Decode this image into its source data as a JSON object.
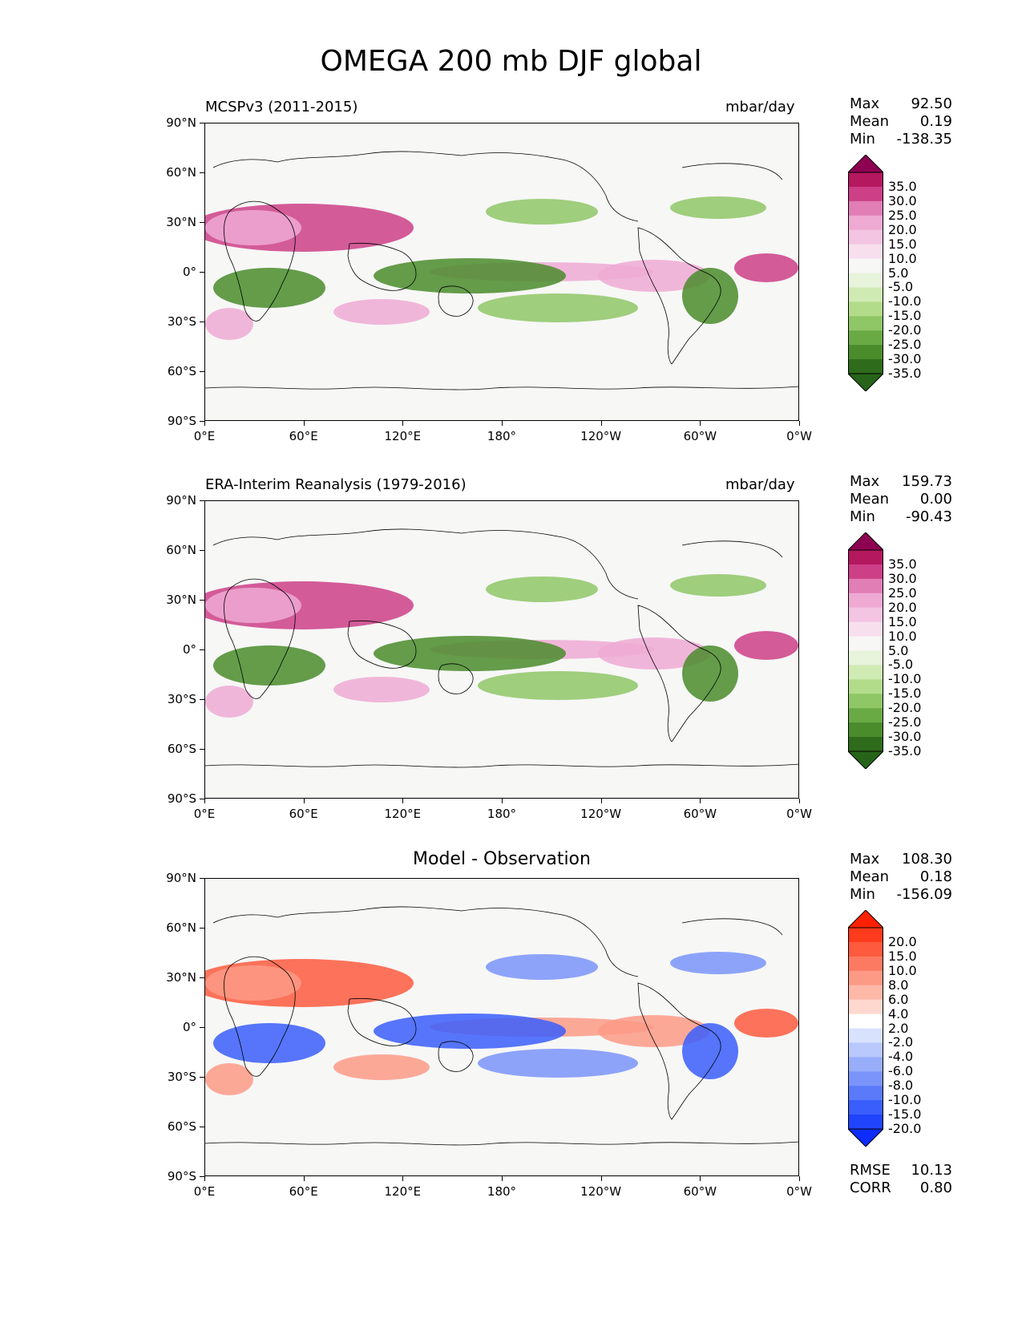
{
  "title": "OMEGA 200 mb DJF global",
  "x_ticks": [
    "0°E",
    "60°E",
    "120°E",
    "180°",
    "120°W",
    "60°W",
    "0°W"
  ],
  "y_ticks": [
    "90°N",
    "60°N",
    "30°N",
    "0°",
    "30°S",
    "60°S",
    "90°S"
  ],
  "panels": [
    {
      "left_title": "MCSPv3 (2011-2015)",
      "right_title": "mbar/day",
      "center_title": "",
      "stats": [
        {
          "k": "Max",
          "v": "92.50"
        },
        {
          "k": "Mean",
          "v": "0.19"
        },
        {
          "k": "Min",
          "v": "-138.35"
        }
      ],
      "extra_stats": [],
      "colorbar_labels": [
        "35.0",
        "30.0",
        "25.0",
        "20.0",
        "15.0",
        "10.0",
        "5.0",
        "-5.0",
        "-10.0",
        "-15.0",
        "-20.0",
        "-25.0",
        "-30.0",
        "-35.0"
      ],
      "colorbar_colors": [
        "#8e0152",
        "#b4185f",
        "#cd3f87",
        "#e07eb5",
        "#eeaad3",
        "#f3c5e2",
        "#f8dfee",
        "#f7f7f6",
        "#e8f3dc",
        "#d0eab4",
        "#b3dc8a",
        "#8fc767",
        "#6aaa45",
        "#4a8c2c",
        "#2e6b1a",
        "#276419"
      ]
    },
    {
      "left_title": "ERA-Interim Reanalysis (1979-2016)",
      "right_title": "mbar/day",
      "center_title": "",
      "stats": [
        {
          "k": "Max",
          "v": "159.73"
        },
        {
          "k": "Mean",
          "v": "0.00"
        },
        {
          "k": "Min",
          "v": "-90.43"
        }
      ],
      "extra_stats": [],
      "colorbar_labels": [
        "35.0",
        "30.0",
        "25.0",
        "20.0",
        "15.0",
        "10.0",
        "5.0",
        "-5.0",
        "-10.0",
        "-15.0",
        "-20.0",
        "-25.0",
        "-30.0",
        "-35.0"
      ],
      "colorbar_colors": [
        "#8e0152",
        "#b4185f",
        "#cd3f87",
        "#e07eb5",
        "#eeaad3",
        "#f3c5e2",
        "#f8dfee",
        "#f7f7f6",
        "#e8f3dc",
        "#d0eab4",
        "#b3dc8a",
        "#8fc767",
        "#6aaa45",
        "#4a8c2c",
        "#2e6b1a",
        "#276419"
      ]
    },
    {
      "left_title": "",
      "right_title": "",
      "center_title": "Model - Observation",
      "stats": [
        {
          "k": "Max",
          "v": "108.30"
        },
        {
          "k": "Mean",
          "v": "0.18"
        },
        {
          "k": "Min",
          "v": "-156.09"
        }
      ],
      "extra_stats": [
        {
          "k": "RMSE",
          "v": "10.13"
        },
        {
          "k": "CORR",
          "v": "0.80"
        }
      ],
      "colorbar_labels": [
        "20.0",
        "15.0",
        "10.0",
        "8.0",
        "6.0",
        "4.0",
        "2.0",
        "-2.0",
        "-4.0",
        "-6.0",
        "-8.0",
        "-10.0",
        "-15.0",
        "-20.0"
      ],
      "colorbar_colors": [
        "#ff2000",
        "#fe3b1c",
        "#fd5a3e",
        "#fd7a62",
        "#fd9a86",
        "#feb8a8",
        "#fed8ce",
        "#ffffff",
        "#d8e2fd",
        "#b8c8fc",
        "#98aefb",
        "#7a94fa",
        "#5a7afa",
        "#3a5efb",
        "#1f44fc",
        "#0d2cfe"
      ]
    }
  ]
}
